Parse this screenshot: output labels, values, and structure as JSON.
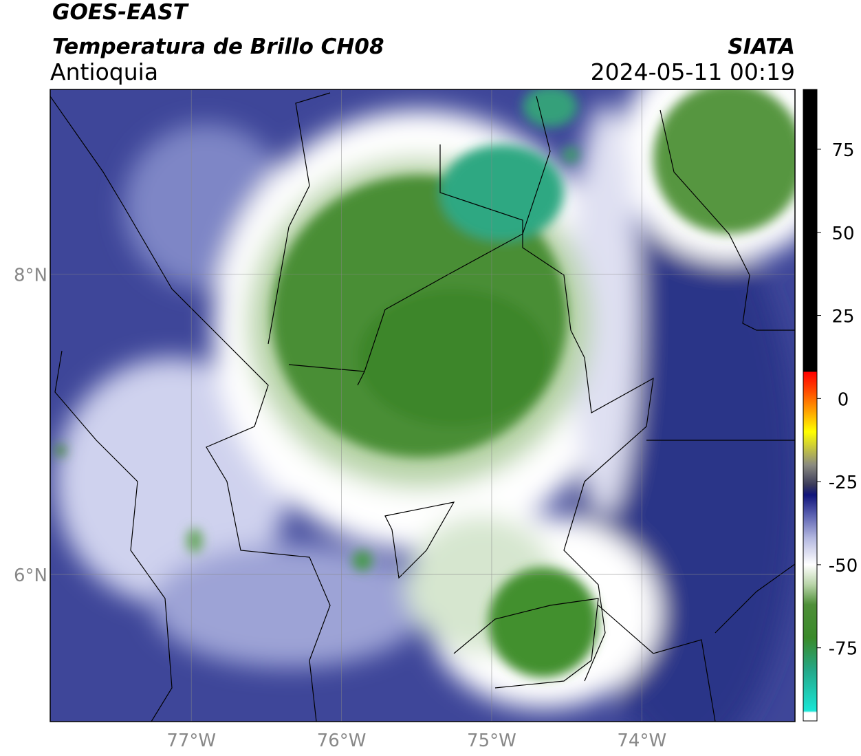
{
  "header": {
    "satellite": "GOES-EAST",
    "product": "Temperatura de Brillo CH08",
    "region": "Antioquia",
    "source": "SIATA",
    "datetime": "2024-05-11 00:19"
  },
  "chart_data": {
    "type": "map",
    "xlim": [
      -77.94,
      -72.98
    ],
    "ylim": [
      5.02,
      9.23
    ],
    "xticks": [
      {
        "value": -77,
        "label": "77°W"
      },
      {
        "value": -76,
        "label": "76°W"
      },
      {
        "value": -75,
        "label": "75°W"
      },
      {
        "value": -74,
        "label": "74°W"
      }
    ],
    "yticks": [
      {
        "value": 6,
        "label": "6°N"
      },
      {
        "value": 8,
        "label": "8°N"
      }
    ],
    "grid": true,
    "colorbar": {
      "lim": [
        -97,
        93
      ],
      "ticks": [
        -75,
        -50,
        -25,
        0,
        25,
        50,
        75
      ],
      "colormap": [
        {
          "value": -97,
          "color": "#ffffff"
        },
        {
          "value": -94.5,
          "color": "#ffffff"
        },
        {
          "value": -94,
          "color": "#19e6d6"
        },
        {
          "value": -82,
          "color": "#24a98a"
        },
        {
          "value": -72,
          "color": "#3a8a2a"
        },
        {
          "value": -62,
          "color": "#4e8f38"
        },
        {
          "value": -56,
          "color": "#b8d4a8"
        },
        {
          "value": -50,
          "color": "#ffffff"
        },
        {
          "value": -42,
          "color": "#b4b8e0"
        },
        {
          "value": -35,
          "color": "#5a60b0"
        },
        {
          "value": -29,
          "color": "#10147a"
        },
        {
          "value": -26,
          "color": "#3a3a5a"
        },
        {
          "value": -20,
          "color": "#8a8a80"
        },
        {
          "value": -10,
          "color": "#ffff00"
        },
        {
          "value": -4,
          "color": "#ffa500"
        },
        {
          "value": 3,
          "color": "#ff4000"
        },
        {
          "value": 8,
          "color": "#ff0000"
        },
        {
          "value": 8.1,
          "color": "#000000"
        },
        {
          "value": 93,
          "color": "#000000"
        }
      ]
    }
  }
}
